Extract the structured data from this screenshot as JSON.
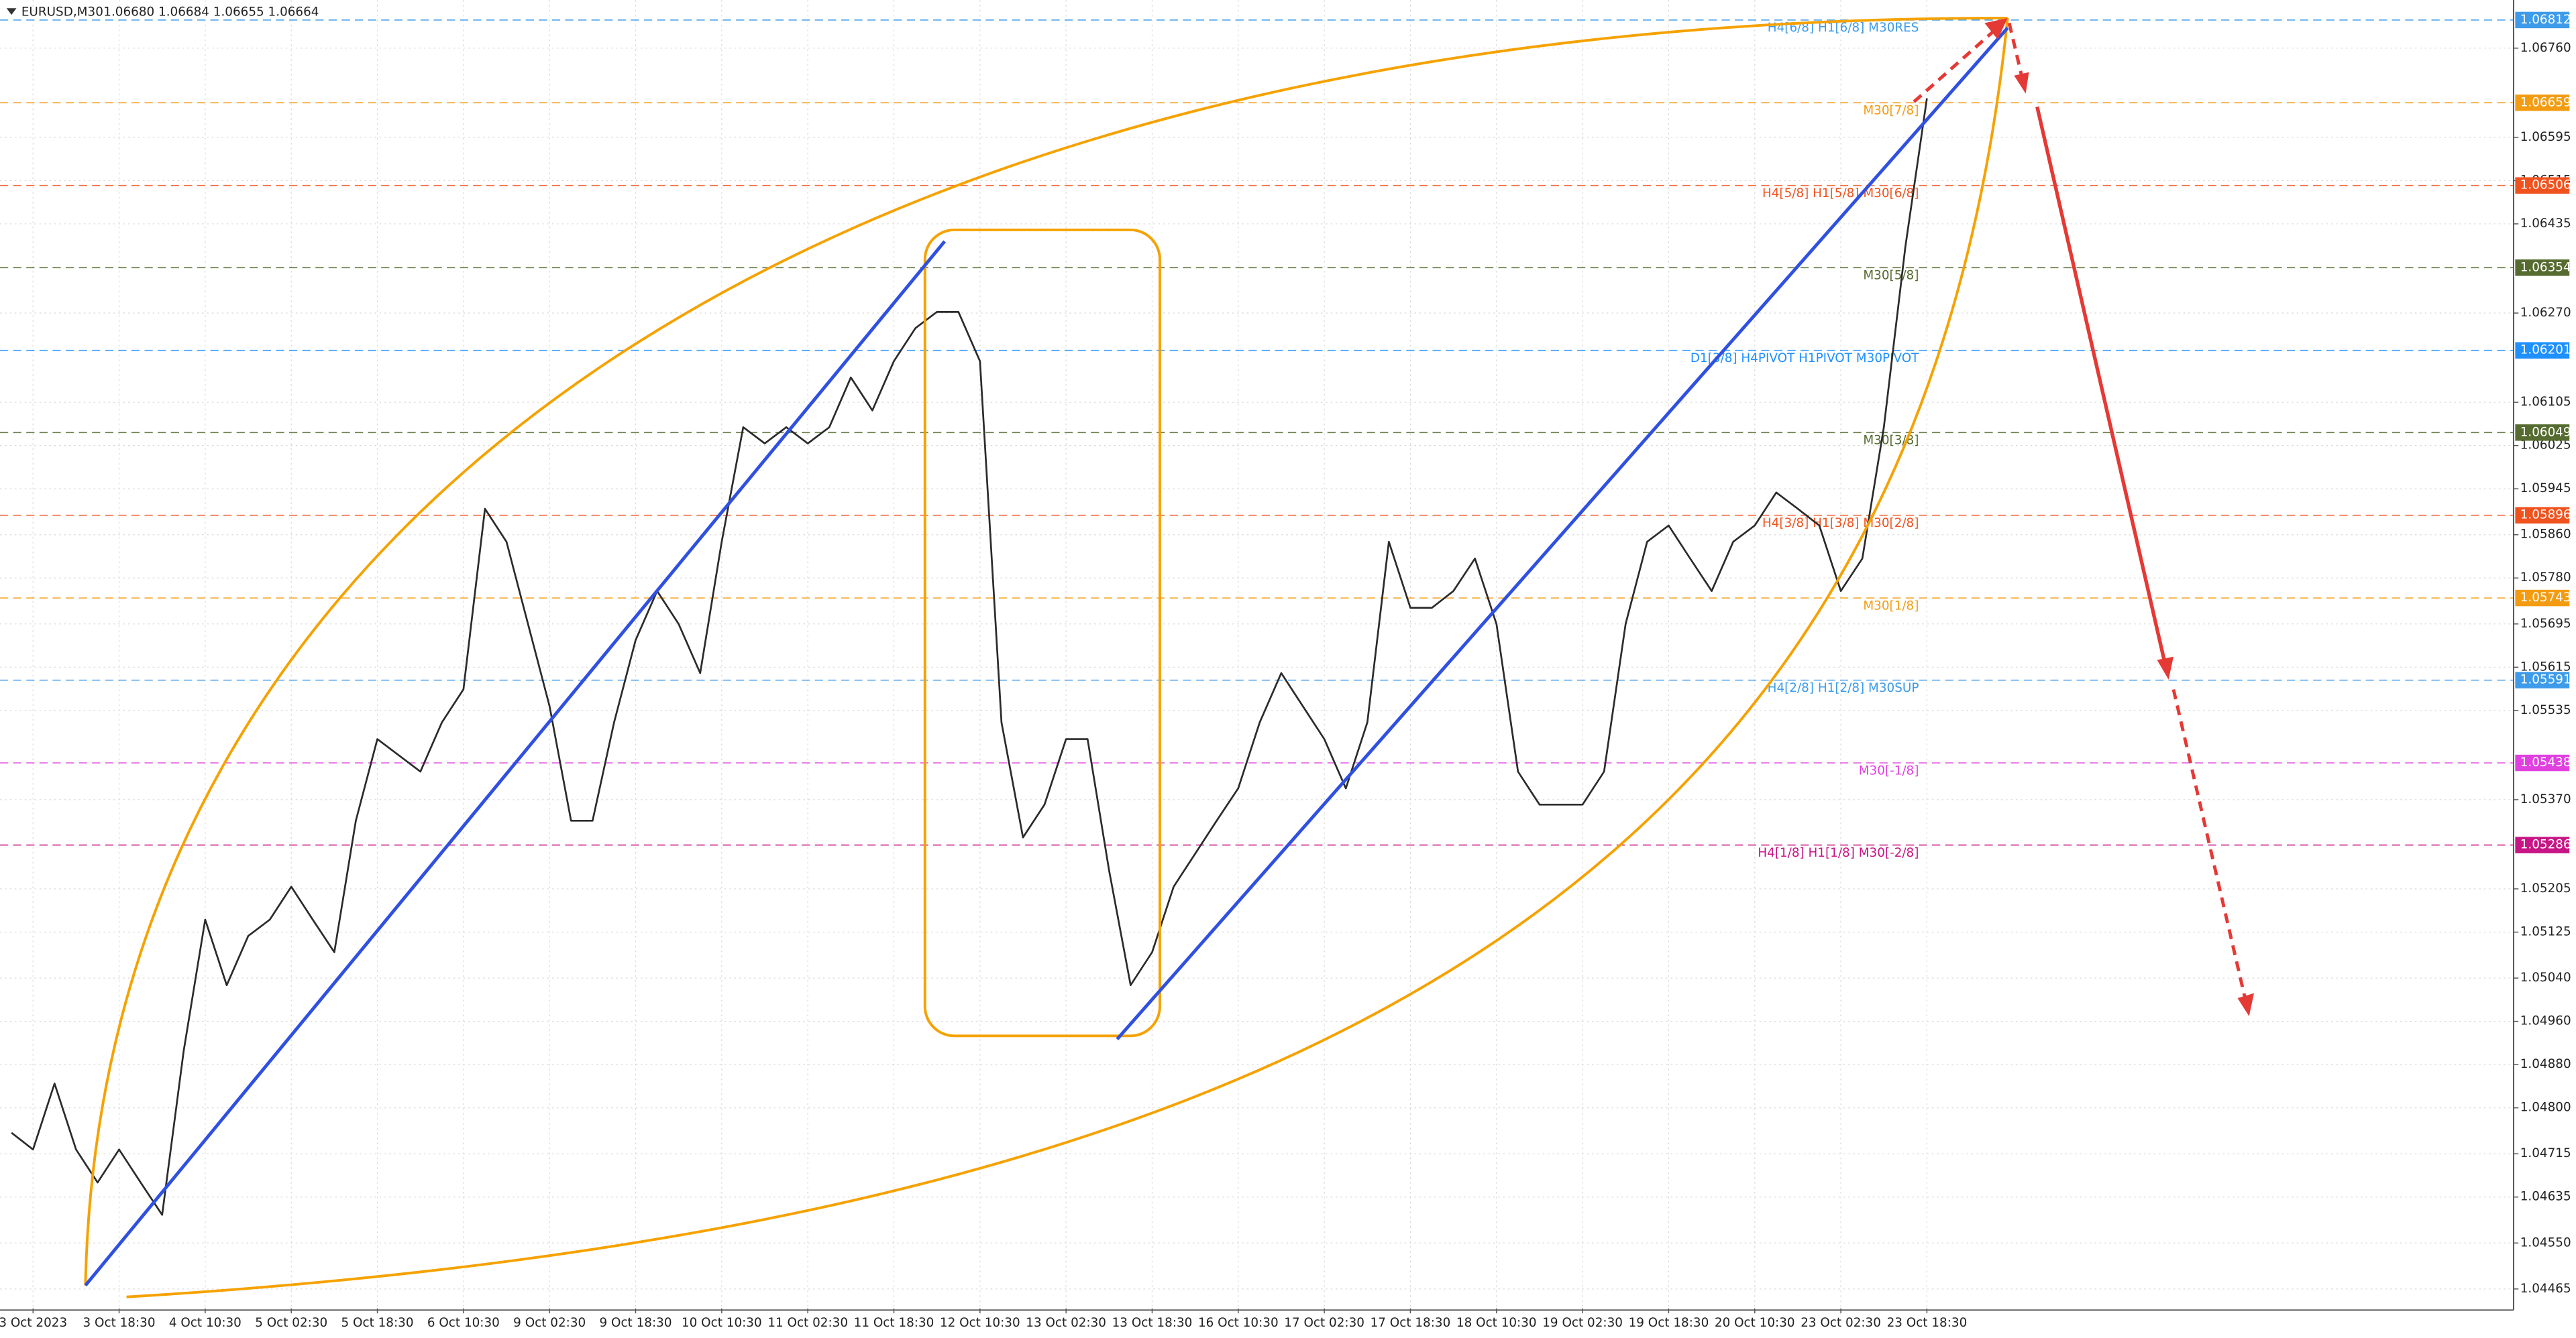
{
  "chart_data": {
    "type": "line",
    "symbol": "EURUSD,M30",
    "quote": "1.06680 1.06684 1.06655 1.06664",
    "categories": [
      null,
      "3 Oct 2023",
      null,
      null,
      null,
      "3 Oct 18:30",
      null,
      null,
      null,
      "4 Oct 10:30",
      null,
      null,
      null,
      "5 Oct 02:30",
      null,
      null,
      null,
      "5 Oct 18:30",
      null,
      null,
      null,
      "6 Oct 10:30",
      null,
      null,
      null,
      "9 Oct 02:30",
      null,
      null,
      null,
      "9 Oct 18:30",
      null,
      null,
      null,
      "10 Oct 10:30",
      null,
      null,
      null,
      "11 Oct 02:30",
      null,
      null,
      null,
      "11 Oct 18:30",
      null,
      null,
      null,
      "12 Oct 10:30",
      null,
      null,
      null,
      "13 Oct 02:30",
      null,
      null,
      null,
      "13 Oct 18:30",
      null,
      null,
      null,
      "16 Oct 10:30",
      null,
      null,
      null,
      "17 Oct 02:30",
      null,
      null,
      null,
      "17 Oct 18:30",
      null,
      null,
      null,
      "18 Oct 10:30",
      null,
      null,
      null,
      "19 Oct 02:30",
      null,
      null,
      null,
      "19 Oct 18:30",
      null,
      null,
      null,
      "20 Oct 10:30",
      null,
      null,
      null,
      "23 Oct 02:30",
      null,
      null,
      null,
      "23 Oct 18:30"
    ],
    "color": "#2b2b2b",
    "values": [
      1.04754,
      1.04723,
      1.04845,
      1.04723,
      1.04662,
      1.04723,
      1.04662,
      1.04602,
      1.04905,
      1.05148,
      1.05027,
      1.05118,
      1.05148,
      1.05209,
      1.05148,
      1.05088,
      1.05331,
      1.05482,
      1.05452,
      1.05422,
      1.05513,
      1.05574,
      1.05908,
      1.05847,
      1.05695,
      1.05543,
      1.05331,
      1.05331,
      1.05513,
      1.05665,
      1.05756,
      1.05695,
      1.05604,
      1.05847,
      1.06059,
      1.06029,
      1.06059,
      1.06029,
      1.06059,
      1.06151,
      1.0609,
      1.06181,
      1.06242,
      1.06272,
      1.06272,
      1.06181,
      1.05513,
      1.053,
      1.05361,
      1.05482,
      1.05482,
      1.05239,
      1.05027,
      1.05088,
      1.05209,
      1.0527,
      1.05331,
      1.05391,
      1.05513,
      1.05604,
      1.05543,
      1.05482,
      1.05391,
      1.05513,
      1.05847,
      1.05725,
      1.05725,
      1.05756,
      1.05816,
      1.05695,
      1.05422,
      1.05361,
      1.05361,
      1.05361,
      1.05422,
      1.05695,
      1.05847,
      1.05877,
      1.05816,
      1.05756,
      1.05847,
      1.05877,
      1.05938,
      1.05908,
      1.05877,
      1.05756,
      1.05816,
      1.06059,
      1.06393,
      1.06667
    ],
    "ylim": [
      1.04429,
      1.06849
    ],
    "yticks": [
      {
        "value": 1.0676,
        "label": "1.06760"
      },
      1.06595,
      {
        "value": 1.06515,
        "label": "1.06515"
      },
      1.06435,
      {
        "value": 1.0627,
        "label": "1.06270"
      },
      1.06105,
      1.06025,
      1.05945,
      {
        "value": 1.0586,
        "label": "1.05860"
      },
      {
        "value": 1.0578,
        "label": "1.05780"
      },
      1.05695,
      1.05615,
      1.05535,
      {
        "value": 1.0537,
        "label": "1.05370"
      },
      1.05205,
      1.05125,
      {
        "value": 1.0504,
        "label": "1.05040"
      },
      {
        "value": 1.0496,
        "label": "1.04960"
      },
      {
        "value": 1.0488,
        "label": "1.04880"
      },
      {
        "value": 1.048,
        "label": "1.04800"
      },
      1.04715,
      1.04635,
      {
        "value": 1.0455,
        "label": "1.04550"
      },
      1.04465
    ],
    "grid": true,
    "levels": [
      {
        "price": 1.06812,
        "text": "H4[6/8] H1[6/8] M30RES",
        "color": "#3d9be9"
      },
      {
        "price": 1.06659,
        "text": "M30[7/8]",
        "color": "#f39c12"
      },
      {
        "price": 1.06506,
        "text": "H4[5/8] H1[5/8] M30[6/8]",
        "color": "#f0521e"
      },
      {
        "price": 1.06354,
        "text": "M30[5/8]",
        "color": "#556b2f"
      },
      {
        "price": 1.06201,
        "text": "D1[3/8] H4PIVOT H1PIVOT M30PIVOT",
        "color": "#1e90ff"
      },
      {
        "price": 1.06049,
        "text": "M30[3/8]",
        "color": "#556b2f"
      },
      {
        "price": 1.05896,
        "text": "H4[3/8] H1[3/8] M30[2/8]",
        "color": "#f0521e"
      },
      {
        "price": 1.05743,
        "text": "M30[1/8]",
        "color": "#f39c12"
      },
      {
        "price": 1.05591,
        "text": "H4[2/8] H1[2/8] M30SUP",
        "color": "#3d9be9"
      },
      {
        "price": 1.05438,
        "text": "M30[-1/8]",
        "color": "#e040e0"
      },
      {
        "price": 1.05286,
        "text": "H4[1/8] H1[1/8] M30[-2/8]",
        "color": "#c71585"
      }
    ]
  }
}
